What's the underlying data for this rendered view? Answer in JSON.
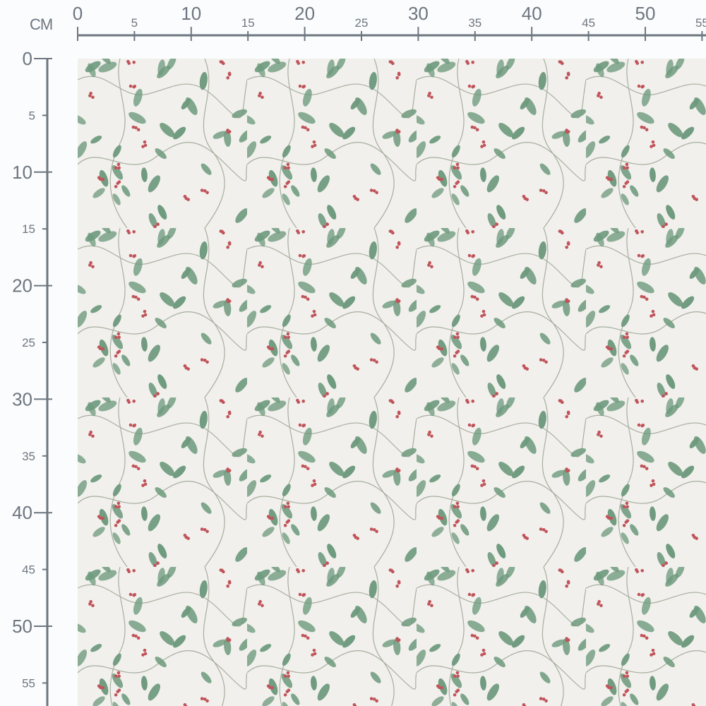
{
  "ruler": {
    "unit": "CM",
    "color": "#6d7680",
    "top_labels": [
      "0",
      "5",
      "10",
      "15",
      "20",
      "25",
      "30",
      "35",
      "40",
      "45",
      "50",
      "55"
    ],
    "left_labels": [
      "0",
      "5",
      "10",
      "15",
      "20",
      "25",
      "30",
      "35",
      "40",
      "45",
      "50",
      "55"
    ]
  },
  "fabric": {
    "pattern": "holly leaves and red berries on trailing vines",
    "background_color": "#f1f0ec",
    "leaf_color": "#6e9a7e",
    "berry_color": "#c0545a",
    "vine_color": "#a7ae9f"
  }
}
